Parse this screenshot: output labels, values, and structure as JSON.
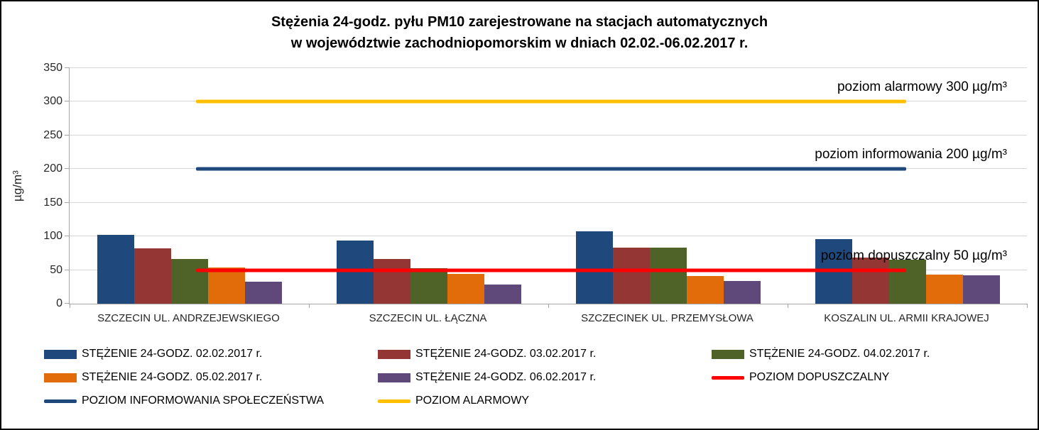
{
  "title": {
    "line1": "Stężenia 24-godz. pyłu PM10 zarejestrowane na stacjach automatycznych",
    "line2": "w województwie zachodniopomorskim w dniach 02.02.-06.02.2017 r."
  },
  "chart_data": {
    "type": "bar",
    "ylabel": "µg/m³",
    "ylim": [
      0,
      350
    ],
    "yticks": [
      0,
      50,
      100,
      150,
      200,
      250,
      300,
      350
    ],
    "grid": true,
    "legend_position": "bottom",
    "categories": [
      "SZCZECIN UL. ANDRZEJEWSKIEGO",
      "SZCZECIN UL. ŁĄCZNA",
      "SZCZECINEK UL. PRZEMYSŁOWA",
      "KOSZALIN UL. ARMII KRAJOWEJ"
    ],
    "series": [
      {
        "name": "STĘŻENIE 24-GODZ. 02.02.2017 r.",
        "color": "#1F497D",
        "values": [
          102,
          94,
          108,
          96
        ]
      },
      {
        "name": "STĘŻENIE 24-GODZ. 03.02.2017 r.",
        "color": "#943634",
        "values": [
          82,
          66,
          83,
          69
        ]
      },
      {
        "name": "STĘŻENIE 24-GODZ. 04.02.2017 r.",
        "color": "#4F6228",
        "values": [
          66,
          53,
          83,
          65
        ]
      },
      {
        "name": "STĘŻENIE 24-GODZ. 05.02.2017 r.",
        "color": "#E36C0A",
        "values": [
          54,
          44,
          41,
          43
        ]
      },
      {
        "name": "STĘŻENIE 24-GODZ. 06.02.2017 r.",
        "color": "#5F497A",
        "values": [
          33,
          28,
          34,
          42
        ]
      }
    ],
    "reference_lines": [
      {
        "name": "POZIOM ALARMOWY",
        "value": 300,
        "color": "#FFC000",
        "label": "poziom alarmowy 300 µg/m³"
      },
      {
        "name": "POZIOM INFORMOWANIA SPOŁECZEŃSTWA",
        "value": 200,
        "color": "#1F497D",
        "label": "poziom informowania 200 µg/m³"
      },
      {
        "name": "POZIOM DOPUSZCZALNY",
        "value": 50,
        "color": "#FF0000",
        "label": "poziom dopuszczalny 50 µg/m³"
      }
    ]
  },
  "legend": {
    "items": [
      {
        "label": "STĘŻENIE 24-GODZ. 02.02.2017 r.",
        "color": "#1F497D",
        "swatch": "bar"
      },
      {
        "label": "STĘŻENIE 24-GODZ. 03.02.2017 r.",
        "color": "#943634",
        "swatch": "bar"
      },
      {
        "label": "STĘŻENIE 24-GODZ. 04.02.2017 r.",
        "color": "#4F6228",
        "swatch": "bar"
      },
      {
        "label": "STĘŻENIE 24-GODZ. 05.02.2017 r.",
        "color": "#E36C0A",
        "swatch": "bar"
      },
      {
        "label": "STĘŻENIE 24-GODZ. 06.02.2017 r.",
        "color": "#5F497A",
        "swatch": "bar"
      },
      {
        "label": "POZIOM DOPUSZCZALNY",
        "color": "#FF0000",
        "swatch": "line"
      },
      {
        "label": "POZIOM INFORMOWANIA SPOŁECZEŃSTWA",
        "color": "#1F497D",
        "swatch": "line"
      },
      {
        "label": "POZIOM ALARMOWY",
        "color": "#FFC000",
        "swatch": "line"
      }
    ]
  }
}
